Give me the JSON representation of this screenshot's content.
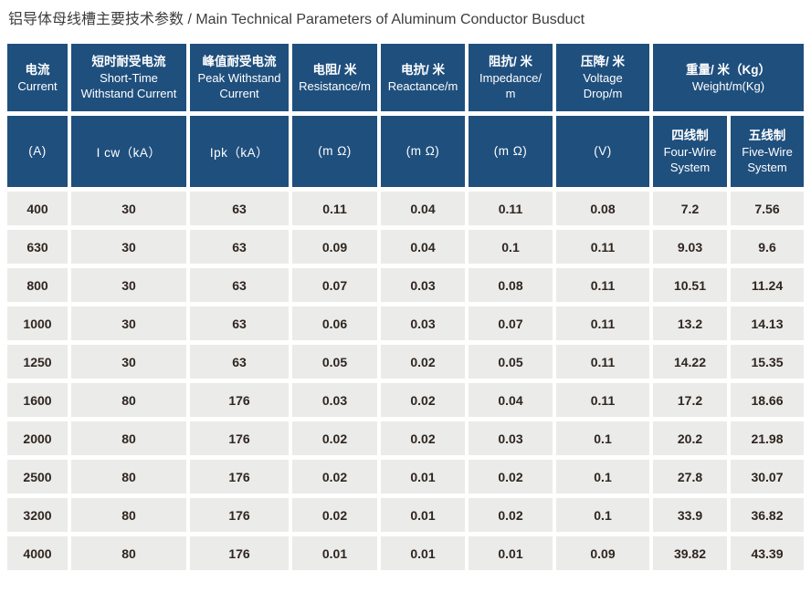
{
  "title": "铝导体母线槽主要技术参数 / Main Technical Parameters of Aluminum Conductor Busduct",
  "colors": {
    "header_bg": "#1f4f7d",
    "header_text": "#ffffff",
    "cell_bg": "#ebebe9",
    "cell_text": "#2f2620",
    "title_text": "#3c3c3c",
    "page_bg": "#ffffff"
  },
  "table": {
    "header_row1": [
      {
        "cn": "电流",
        "en": "Current"
      },
      {
        "cn": "短时耐受电流",
        "en": "Short-Time\nWithstand Current"
      },
      {
        "cn": "峰值耐受电流",
        "en": "Peak Withstand\nCurrent"
      },
      {
        "cn": "电阻/ 米",
        "en": "Resistance/m"
      },
      {
        "cn": "电抗/ 米",
        "en": "Reactance/m"
      },
      {
        "cn": "阻抗/ 米",
        "en": "Impedance/\nm"
      },
      {
        "cn": "压降/ 米",
        "en": "Voltage\nDrop/m"
      },
      {
        "cn": "重量/ 米（Kg）",
        "en": "Weight/m(Kg)"
      }
    ],
    "header_row2": [
      {
        "label": "(A)"
      },
      {
        "label": "I cw（kA）"
      },
      {
        "label": "Ipk（kA）"
      },
      {
        "label": "(m Ω)"
      },
      {
        "label": "(m Ω)"
      },
      {
        "label": "(m Ω)"
      },
      {
        "label": "(V)"
      },
      {
        "cn": "四线制",
        "en": "Four-Wire\nSystem"
      },
      {
        "cn": "五线制",
        "en": "Five-Wire\nSystem"
      }
    ],
    "rows": [
      [
        "400",
        "30",
        "63",
        "0.11",
        "0.04",
        "0.11",
        "0.08",
        "7.2",
        "7.56"
      ],
      [
        "630",
        "30",
        "63",
        "0.09",
        "0.04",
        "0.1",
        "0.11",
        "9.03",
        "9.6"
      ],
      [
        "800",
        "30",
        "63",
        "0.07",
        "0.03",
        "0.08",
        "0.11",
        "10.51",
        "11.24"
      ],
      [
        "1000",
        "30",
        "63",
        "0.06",
        "0.03",
        "0.07",
        "0.11",
        "13.2",
        "14.13"
      ],
      [
        "1250",
        "30",
        "63",
        "0.05",
        "0.02",
        "0.05",
        "0.11",
        "14.22",
        "15.35"
      ],
      [
        "1600",
        "80",
        "176",
        "0.03",
        "0.02",
        "0.04",
        "0.11",
        "17.2",
        "18.66"
      ],
      [
        "2000",
        "80",
        "176",
        "0.02",
        "0.02",
        "0.03",
        "0.1",
        "20.2",
        "21.98"
      ],
      [
        "2500",
        "80",
        "176",
        "0.02",
        "0.01",
        "0.02",
        "0.1",
        "27.8",
        "30.07"
      ],
      [
        "3200",
        "80",
        "176",
        "0.02",
        "0.01",
        "0.02",
        "0.1",
        "33.9",
        "36.82"
      ],
      [
        "4000",
        "80",
        "176",
        "0.01",
        "0.01",
        "0.01",
        "0.09",
        "39.82",
        "43.39"
      ]
    ]
  }
}
